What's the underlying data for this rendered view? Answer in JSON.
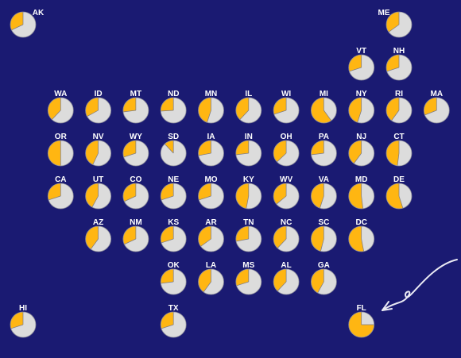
{
  "colors": {
    "background": "#1a1a72",
    "share": "#ffb612",
    "remainder": "#dcdcdc",
    "label": "#ffffff"
  },
  "arrow_icon": "curved-arrow-pointing-to-florida",
  "chart_data": {
    "type": "pie",
    "layout": "tile-grid-map",
    "value_unit": "fraction",
    "states": [
      {
        "abbr": "AK",
        "col": 0,
        "row": 0,
        "value": 0.32
      },
      {
        "abbr": "ME",
        "col": 10,
        "row": 0,
        "value": 0.35
      },
      {
        "abbr": "VT",
        "col": 9,
        "row": 1,
        "value": 0.3
      },
      {
        "abbr": "NH",
        "col": 10,
        "row": 1,
        "value": 0.3
      },
      {
        "abbr": "WA",
        "col": 1,
        "row": 2,
        "value": 0.38
      },
      {
        "abbr": "ID",
        "col": 2,
        "row": 2,
        "value": 0.33
      },
      {
        "abbr": "MT",
        "col": 3,
        "row": 2,
        "value": 0.27
      },
      {
        "abbr": "ND",
        "col": 4,
        "row": 2,
        "value": 0.26
      },
      {
        "abbr": "MN",
        "col": 5,
        "row": 2,
        "value": 0.45
      },
      {
        "abbr": "IL",
        "col": 6,
        "row": 2,
        "value": 0.38
      },
      {
        "abbr": "WI",
        "col": 7,
        "row": 2,
        "value": 0.3
      },
      {
        "abbr": "MI",
        "col": 8,
        "row": 2,
        "value": 0.6
      },
      {
        "abbr": "NY",
        "col": 9,
        "row": 2,
        "value": 0.45
      },
      {
        "abbr": "RI",
        "col": 10,
        "row": 2,
        "value": 0.4
      },
      {
        "abbr": "MA",
        "col": 11,
        "row": 2,
        "value": 0.31
      },
      {
        "abbr": "OR",
        "col": 1,
        "row": 3,
        "value": 0.5
      },
      {
        "abbr": "NV",
        "col": 2,
        "row": 3,
        "value": 0.43
      },
      {
        "abbr": "WY",
        "col": 3,
        "row": 3,
        "value": 0.3
      },
      {
        "abbr": "SD",
        "col": 4,
        "row": 3,
        "value": 0.12
      },
      {
        "abbr": "IA",
        "col": 5,
        "row": 3,
        "value": 0.28
      },
      {
        "abbr": "IN",
        "col": 6,
        "row": 3,
        "value": 0.27
      },
      {
        "abbr": "OH",
        "col": 7,
        "row": 3,
        "value": 0.37
      },
      {
        "abbr": "PA",
        "col": 8,
        "row": 3,
        "value": 0.27
      },
      {
        "abbr": "NJ",
        "col": 9,
        "row": 3,
        "value": 0.4
      },
      {
        "abbr": "CT",
        "col": 10,
        "row": 3,
        "value": 0.48
      },
      {
        "abbr": "CA",
        "col": 1,
        "row": 4,
        "value": 0.3
      },
      {
        "abbr": "UT",
        "col": 2,
        "row": 4,
        "value": 0.42
      },
      {
        "abbr": "CO",
        "col": 3,
        "row": 4,
        "value": 0.32
      },
      {
        "abbr": "NE",
        "col": 4,
        "row": 4,
        "value": 0.3
      },
      {
        "abbr": "MO",
        "col": 5,
        "row": 4,
        "value": 0.3
      },
      {
        "abbr": "KY",
        "col": 6,
        "row": 4,
        "value": 0.47
      },
      {
        "abbr": "WV",
        "col": 7,
        "row": 4,
        "value": 0.36
      },
      {
        "abbr": "VA",
        "col": 8,
        "row": 4,
        "value": 0.45
      },
      {
        "abbr": "MD",
        "col": 9,
        "row": 4,
        "value": 0.52
      },
      {
        "abbr": "DE",
        "col": 10,
        "row": 4,
        "value": 0.55
      },
      {
        "abbr": "AZ",
        "col": 2,
        "row": 5,
        "value": 0.4
      },
      {
        "abbr": "NM",
        "col": 3,
        "row": 5,
        "value": 0.32
      },
      {
        "abbr": "KS",
        "col": 4,
        "row": 5,
        "value": 0.3
      },
      {
        "abbr": "AR",
        "col": 5,
        "row": 5,
        "value": 0.35
      },
      {
        "abbr": "TN",
        "col": 6,
        "row": 5,
        "value": 0.28
      },
      {
        "abbr": "NC",
        "col": 7,
        "row": 5,
        "value": 0.38
      },
      {
        "abbr": "SC",
        "col": 8,
        "row": 5,
        "value": 0.46
      },
      {
        "abbr": "DC",
        "col": 9,
        "row": 5,
        "value": 0.53
      },
      {
        "abbr": "OK",
        "col": 4,
        "row": 6,
        "value": 0.27
      },
      {
        "abbr": "LA",
        "col": 5,
        "row": 6,
        "value": 0.4
      },
      {
        "abbr": "MS",
        "col": 6,
        "row": 6,
        "value": 0.3
      },
      {
        "abbr": "AL",
        "col": 7,
        "row": 6,
        "value": 0.38
      },
      {
        "abbr": "GA",
        "col": 8,
        "row": 6,
        "value": 0.42
      },
      {
        "abbr": "HI",
        "col": 0,
        "row": 7,
        "value": 0.3
      },
      {
        "abbr": "TX",
        "col": 4,
        "row": 7,
        "value": 0.3
      },
      {
        "abbr": "FL",
        "col": 9,
        "row": 7,
        "value": 0.75
      }
    ]
  }
}
